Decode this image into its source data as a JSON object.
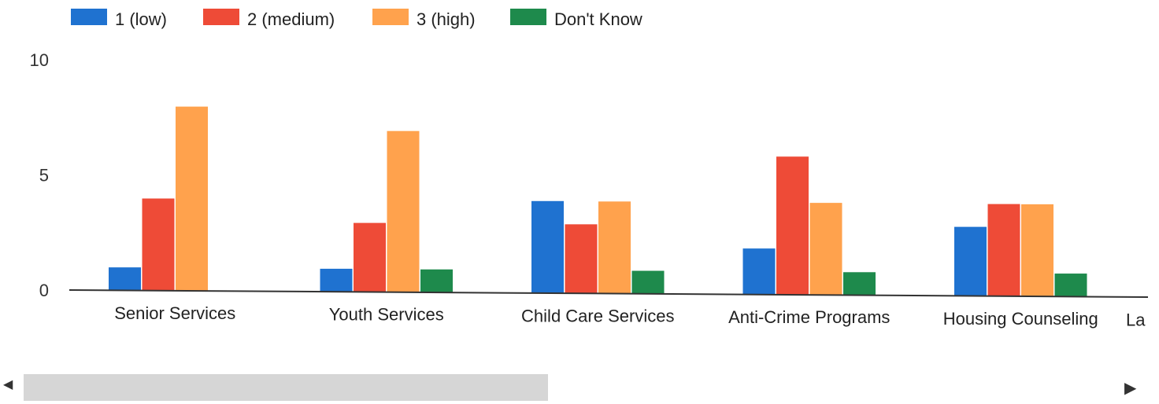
{
  "chart_data": {
    "type": "bar",
    "categories": [
      "Senior Services",
      "Youth Services",
      "Child Care Services",
      "Anti-Crime Programs",
      "Housing Counseling",
      "La"
    ],
    "series": [
      {
        "name": "1 (low)",
        "color": "#1f72d0",
        "values": [
          1,
          1,
          4,
          2,
          3,
          null
        ]
      },
      {
        "name": "2 (medium)",
        "color": "#ee4b37",
        "values": [
          4,
          3,
          3,
          6,
          4,
          null
        ]
      },
      {
        "name": "3 (high)",
        "color": "#ffa24d",
        "values": [
          8,
          7,
          4,
          4,
          4,
          null
        ]
      },
      {
        "name": "Don't Know",
        "color": "#1e8a4c",
        "values": [
          0,
          1,
          1,
          1,
          1,
          null
        ]
      }
    ],
    "yticks": [
      "0",
      "5",
      "10"
    ],
    "ylim": [
      0,
      10
    ],
    "legend_position": "top-left",
    "grid": false
  },
  "scrollbar": {
    "left_arrow": "◀",
    "right_arrow": "▶"
  }
}
